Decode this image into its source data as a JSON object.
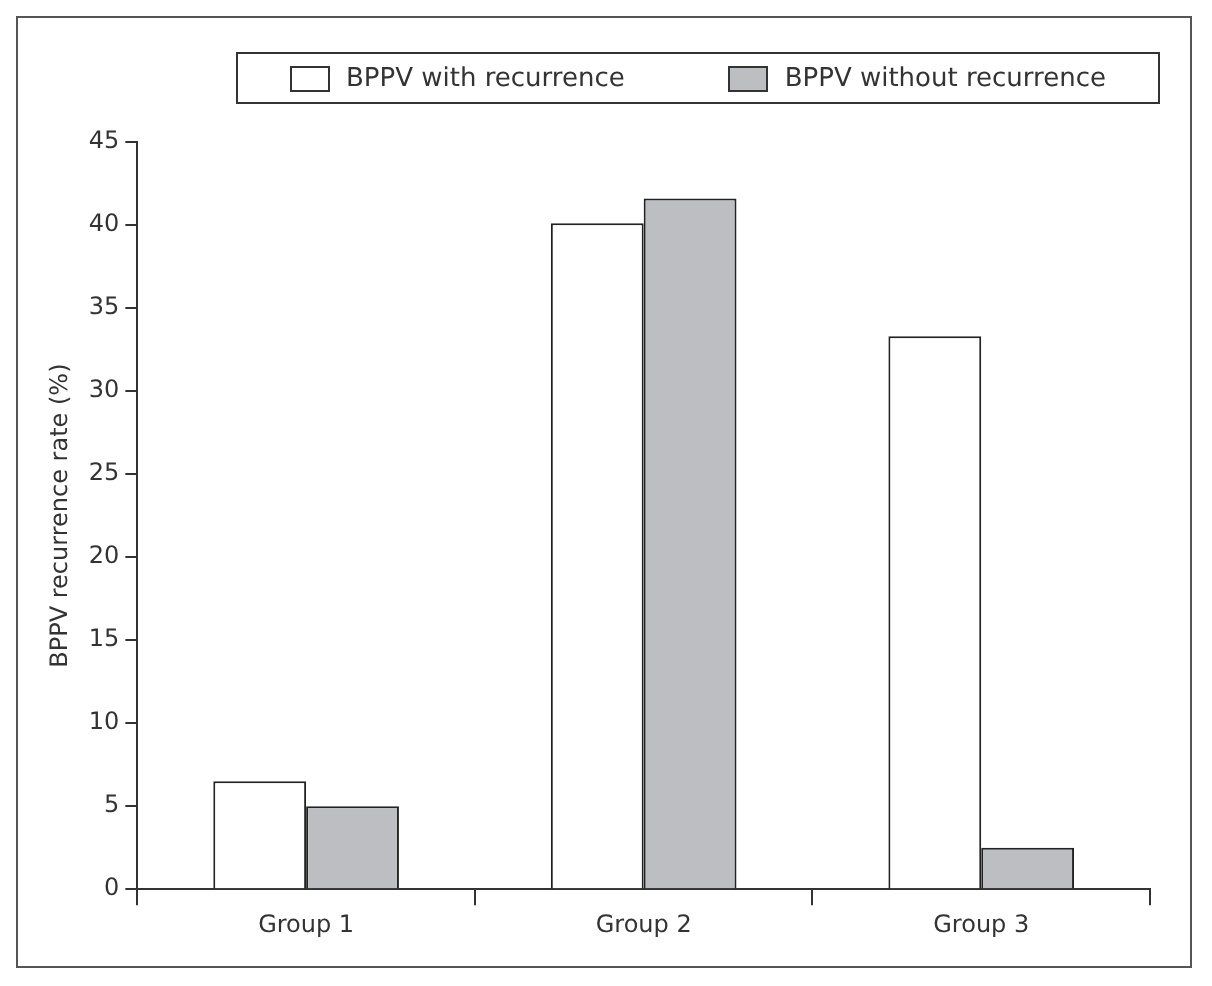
{
  "chart_data": {
    "type": "bar",
    "ylabel": "BPPV recurrence rate (%)",
    "categories": [
      "Group 1",
      "Group 2",
      "Group 3"
    ],
    "series": [
      {
        "name": "BPPV with recurrence",
        "color": "#ffffff",
        "values": [
          6.5,
          40.1,
          33.3
        ]
      },
      {
        "name": "BPPV without recurrence",
        "color": "#bdbec2",
        "values": [
          5,
          41.6,
          2.5
        ]
      }
    ],
    "ylim": [
      0,
      45
    ],
    "yticks": [
      0,
      5,
      10,
      15,
      20,
      25,
      30,
      35,
      40,
      45
    ],
    "grid": false,
    "legend": "top"
  }
}
